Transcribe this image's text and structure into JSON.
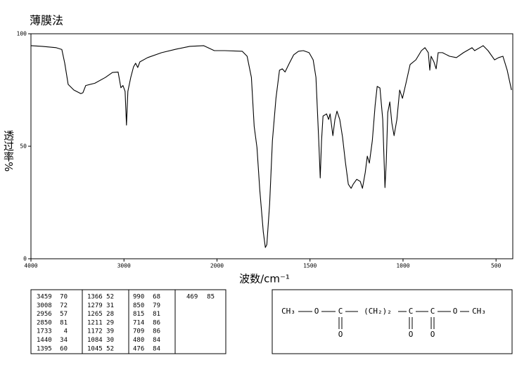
{
  "chart_data": {
    "type": "line",
    "title": "薄膜法",
    "xlabel": "波数/cm⁻¹",
    "ylabel": "透过率%",
    "color": "#000000",
    "xlim": [
      4000,
      410
    ],
    "xticks": [
      4000,
      3000,
      2000,
      1500,
      1000,
      500
    ],
    "ylim": [
      0,
      100
    ],
    "yticks": [
      0,
      50,
      100
    ],
    "x": [
      4000,
      3879,
      3728,
      3668,
      3637,
      3600,
      3539,
      3464,
      3441,
      3411,
      3313,
      3199,
      3124,
      3063,
      3033,
      3011,
      2988,
      2973,
      2958,
      2927,
      2897,
      2875,
      2852,
      2829,
      2746,
      2595,
      2444,
      2293,
      2142,
      2029,
      1958,
      1864,
      1838,
      1815,
      1800,
      1785,
      1770,
      1751,
      1740,
      1732,
      1717,
      1702,
      1683,
      1664,
      1649,
      1634,
      1611,
      1588,
      1562,
      1536,
      1505,
      1483,
      1468,
      1453,
      1445,
      1438,
      1430,
      1411,
      1400,
      1392,
      1377,
      1366,
      1355,
      1340,
      1325,
      1310,
      1294,
      1279,
      1268,
      1249,
      1230,
      1218,
      1203,
      1192,
      1181,
      1165,
      1150,
      1139,
      1124,
      1109,
      1097,
      1090,
      1082,
      1071,
      1060,
      1048,
      1033,
      1018,
      1003,
      984,
      962,
      931,
      901,
      882,
      864,
      856,
      849,
      834,
      822,
      811,
      788,
      750,
      713,
      675,
      629,
      615,
      569,
      543,
      508,
      486,
      463,
      440,
      417
    ],
    "values": [
      94.7,
      94.4,
      93.8,
      93,
      87,
      77.5,
      75,
      73.4,
      73.8,
      77,
      78,
      80.6,
      82.8,
      83,
      76,
      77,
      74.4,
      59.4,
      74.4,
      80.6,
      85.3,
      86.9,
      85,
      87.5,
      89.4,
      91.6,
      93.1,
      94.4,
      94.7,
      92.5,
      92.5,
      92.2,
      90,
      80.6,
      58.8,
      49.4,
      30.6,
      11.9,
      5,
      6.3,
      24.4,
      52.5,
      71.3,
      83.8,
      84.4,
      83,
      86.9,
      90.6,
      92.2,
      92.5,
      91.6,
      88.4,
      80.6,
      52.5,
      35.9,
      52.5,
      63.4,
      64.4,
      61.9,
      64.4,
      54.7,
      61.9,
      65.6,
      61.9,
      54,
      43.1,
      33.1,
      31.3,
      33.1,
      35.3,
      34.4,
      31.3,
      38.4,
      45.6,
      42.5,
      52.5,
      68.1,
      76.6,
      75.9,
      61.9,
      31.6,
      43.1,
      65,
      69.7,
      60.3,
      54.7,
      61.9,
      75,
      71.3,
      78.1,
      86.3,
      88.4,
      92.5,
      93.8,
      91.6,
      83.8,
      90,
      87.5,
      84.4,
      91.6,
      91.6,
      90,
      89.4,
      91.6,
      93.8,
      92.5,
      94.7,
      92.5,
      88.4,
      89.4,
      90,
      83.8,
      75
    ]
  },
  "peak_table": {
    "columns": [
      [
        [
          3459,
          70
        ],
        [
          3008,
          72
        ],
        [
          2956,
          57
        ],
        [
          2850,
          81
        ],
        [
          1733,
          4
        ],
        [
          1440,
          34
        ],
        [
          1395,
          60
        ]
      ],
      [
        [
          1366,
          52
        ],
        [
          1279,
          31
        ],
        [
          1265,
          28
        ],
        [
          1211,
          29
        ],
        [
          1172,
          39
        ],
        [
          1084,
          30
        ],
        [
          1045,
          52
        ]
      ],
      [
        [
          990,
          68
        ],
        [
          850,
          79
        ],
        [
          815,
          81
        ],
        [
          714,
          86
        ],
        [
          709,
          86
        ],
        [
          480,
          84
        ],
        [
          476,
          84
        ]
      ],
      [
        [
          469,
          85
        ]
      ]
    ]
  },
  "structure": {
    "groups": [
      "CH₃",
      "O",
      "C",
      "(CH₂)₂",
      "C",
      "C",
      "O",
      "CH₃"
    ],
    "carbonyl_oxygens": [
      "O",
      "O",
      "O"
    ]
  }
}
